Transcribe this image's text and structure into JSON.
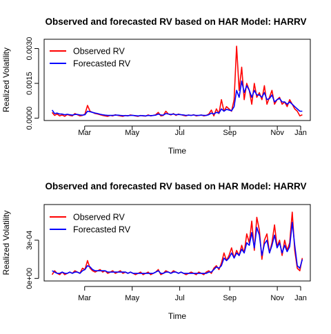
{
  "chart_data": [
    {
      "type": "line",
      "title": "Observed and forecasted RV based on HAR Model: HARRV",
      "xlabel": "Time",
      "ylabel": "Realized Volatility",
      "x_ticks": [
        "Mar",
        "May",
        "Jul",
        "Sep",
        "Nov",
        "Jan"
      ],
      "y_ticks": [
        "0.0000",
        "0.0015",
        "0.0030"
      ],
      "y_tick_values": [
        0.0,
        0.0015,
        0.003
      ],
      "xlim": [
        0,
        1
      ],
      "ylim": [
        -0.0001,
        0.0034
      ],
      "x_tick_positions": [
        0.13,
        0.32,
        0.51,
        0.71,
        0.9,
        1.08
      ],
      "legend": {
        "position": "top-left"
      },
      "grid": false,
      "series": [
        {
          "name": "Observed RV",
          "color": "#ff0000",
          "values": [
            0.00025,
            0.00012,
            0.00018,
            0.0001,
            0.00014,
            8e-05,
            0.00016,
            0.00012,
            0.0001,
            0.0002,
            0.00015,
            0.0001,
            0.00012,
            0.00018,
            0.00055,
            0.0003,
            0.00025,
            0.0002,
            0.00018,
            0.00015,
            0.00012,
            0.0001,
            8e-05,
            0.00012,
            0.0001,
            0.00015,
            0.00012,
            0.0001,
            8e-05,
            0.00012,
            0.0001,
            0.00014,
            0.00012,
            0.0001,
            8e-05,
            0.00012,
            0.0001,
            9e-05,
            0.00014,
            0.0001,
            0.00012,
            0.00015,
            0.00025,
            0.0001,
            0.00012,
            0.0003,
            0.00018,
            0.00014,
            0.0002,
            0.00012,
            0.00018,
            0.00015,
            0.00012,
            0.0001,
            0.00014,
            0.00012,
            0.00015,
            0.0001,
            0.00012,
            0.00014,
            0.0001,
            0.00012,
            0.00018,
            0.00035,
            0.0001,
            0.0004,
            0.0002,
            0.0008,
            0.0003,
            0.0005,
            0.0004,
            0.0003,
            0.0008,
            0.0031,
            0.0012,
            0.0022,
            0.0008,
            0.0015,
            0.0012,
            0.0006,
            0.0015,
            0.0009,
            0.0011,
            0.0008,
            0.0014,
            0.0006,
            0.0009,
            0.0012,
            0.0006,
            0.0008,
            0.0009,
            0.0006,
            0.0007,
            0.0005,
            0.0008,
            0.0006,
            0.0004,
            0.0003,
            0.0001,
            0.00015
          ]
        },
        {
          "name": "Forecasted RV",
          "color": "#0000ff",
          "values": [
            0.00035,
            0.0002,
            0.00022,
            0.00018,
            0.00018,
            0.00015,
            0.00017,
            0.00015,
            0.00013,
            0.00016,
            0.00016,
            0.00014,
            0.00013,
            0.00015,
            0.0003,
            0.00028,
            0.00025,
            0.00022,
            0.0002,
            0.00017,
            0.00015,
            0.00013,
            0.00012,
            0.00012,
            0.00012,
            0.00013,
            0.00013,
            0.00012,
            0.00011,
            0.00011,
            0.00011,
            0.00012,
            0.00012,
            0.00011,
            0.0001,
            0.00011,
            0.00011,
            0.0001,
            0.00012,
            0.00011,
            0.00012,
            0.00013,
            0.00018,
            0.00014,
            0.00013,
            0.0002,
            0.00018,
            0.00016,
            0.00018,
            0.00015,
            0.00016,
            0.00015,
            0.00014,
            0.00012,
            0.00013,
            0.00012,
            0.00014,
            0.00012,
            0.00012,
            0.00013,
            0.00012,
            0.00012,
            0.00015,
            0.00022,
            0.00018,
            0.00025,
            0.00022,
            0.0004,
            0.0003,
            0.00038,
            0.00035,
            0.00032,
            0.0005,
            0.0012,
            0.0009,
            0.0016,
            0.0011,
            0.0014,
            0.0012,
            0.0009,
            0.0012,
            0.001,
            0.001,
            0.0009,
            0.0011,
            0.0008,
            0.00085,
            0.001,
            0.0007,
            0.0008,
            0.00085,
            0.0007,
            0.0007,
            0.0006,
            0.0007,
            0.0006,
            0.0005,
            0.0004,
            0.0003,
            0.0003
          ]
        }
      ]
    },
    {
      "type": "line",
      "title": "Observed and forecasted RV based on HAR Model: HARRV",
      "xlabel": "Time",
      "ylabel": "Realized Volatility",
      "x_ticks": [
        "Mar",
        "May",
        "Jul",
        "Sep",
        "Nov",
        "Jan"
      ],
      "y_ticks": [
        "0e+00",
        "3e-04"
      ],
      "y_tick_values": [
        0.0,
        0.0003
      ],
      "xlim": [
        0,
        1
      ],
      "ylim": [
        -2e-05,
        0.00058
      ],
      "x_tick_positions": [
        0.13,
        0.32,
        0.51,
        0.71,
        0.9,
        1.08
      ],
      "legend": {
        "position": "top-left"
      },
      "grid": false,
      "series": [
        {
          "name": "Observed RV",
          "color": "#ff0000",
          "values": [
            3e-05,
            6e-05,
            4e-05,
            3e-05,
            5e-05,
            3e-05,
            4e-05,
            5e-05,
            4e-05,
            6e-05,
            5e-05,
            4e-05,
            8e-05,
            7e-05,
            0.00014,
            8e-05,
            6e-05,
            5e-05,
            6e-05,
            7e-05,
            5e-05,
            6e-05,
            4e-05,
            5e-05,
            6e-05,
            4e-05,
            5e-05,
            6e-05,
            4e-05,
            5e-05,
            4e-05,
            5e-05,
            4e-05,
            3e-05,
            4e-05,
            5e-05,
            3e-05,
            4e-05,
            5e-05,
            3e-05,
            4e-05,
            5e-05,
            7e-05,
            3e-05,
            4e-05,
            6e-05,
            5e-05,
            4e-05,
            6e-05,
            5e-05,
            4e-05,
            5e-05,
            4e-05,
            3e-05,
            4e-05,
            5e-05,
            4e-05,
            3e-05,
            5e-05,
            4e-05,
            3e-05,
            5e-05,
            6e-05,
            4e-05,
            8e-05,
            0.0001,
            7e-05,
            0.00012,
            0.0002,
            0.00014,
            0.00018,
            0.00024,
            0.00016,
            0.00022,
            0.00018,
            0.00026,
            0.0002,
            0.00035,
            0.00028,
            0.00045,
            0.00022,
            0.00048,
            0.00038,
            0.00015,
            0.0003,
            0.00035,
            0.0002,
            0.00028,
            0.00042,
            0.00025,
            0.0003,
            0.00018,
            0.0003,
            0.00022,
            0.00028,
            0.00052,
            0.00022,
            8e-05,
            6e-05,
            0.00016
          ]
        },
        {
          "name": "Forecasted RV",
          "color": "#0000ff",
          "values": [
            6e-05,
            5e-05,
            4e-05,
            4e-05,
            5e-05,
            4e-05,
            4e-05,
            5e-05,
            4e-05,
            5e-05,
            5e-05,
            4e-05,
            6e-05,
            7e-05,
            0.0001,
            9e-05,
            7e-05,
            6e-05,
            6e-05,
            6e-05,
            6e-05,
            6e-05,
            5e-05,
            5e-05,
            5e-05,
            5e-05,
            5e-05,
            5e-05,
            5e-05,
            5e-05,
            4e-05,
            5e-05,
            4e-05,
            4e-05,
            4e-05,
            4e-05,
            4e-05,
            4e-05,
            4e-05,
            4e-05,
            4e-05,
            5e-05,
            6e-05,
            4e-05,
            4e-05,
            5e-05,
            5e-05,
            4e-05,
            5e-05,
            5e-05,
            4e-05,
            5e-05,
            4e-05,
            4e-05,
            4e-05,
            4e-05,
            4e-05,
            4e-05,
            4e-05,
            4e-05,
            4e-05,
            4e-05,
            5e-05,
            5e-05,
            7e-05,
            9e-05,
            8e-05,
            0.0001,
            0.00016,
            0.00014,
            0.00016,
            0.0002,
            0.00016,
            0.0002,
            0.00018,
            0.00023,
            0.0002,
            0.00028,
            0.00026,
            0.00036,
            0.00024,
            0.0004,
            0.00034,
            0.00018,
            0.00027,
            0.0003,
            0.0002,
            0.00026,
            0.00034,
            0.00024,
            0.00028,
            0.0002,
            0.00026,
            0.00021,
            0.00025,
            0.00044,
            0.00026,
            0.0001,
            8e-05,
            0.00015
          ]
        }
      ]
    }
  ]
}
